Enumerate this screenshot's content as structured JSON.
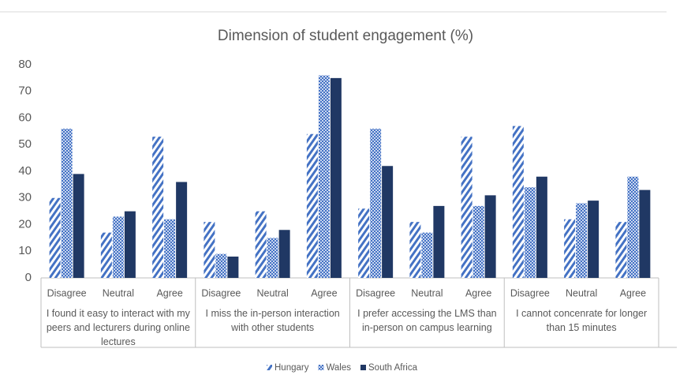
{
  "chart_data": {
    "type": "bar",
    "title": "Dimension of student engagement (%)",
    "categories": [
      "Disagree",
      "Neutral",
      "Agree",
      "Disagree",
      "Neutral",
      "Agree",
      "Disagree",
      "Neutral",
      "Agree",
      "Disagree",
      "Neutral",
      "Agree"
    ],
    "category_groups": [
      "I found it easy to interact with my peers and lecturers during online lectures",
      "I miss the in-person interaction with other students",
      "I prefer accessing the LMS than in-person on campus learning",
      "I cannot concenrate for longer than 15 minutes"
    ],
    "series": [
      {
        "name": "Hungary",
        "color": "#4472c4",
        "values": [
          30,
          17,
          53,
          21,
          25,
          54,
          26,
          21,
          53,
          57,
          22,
          21
        ]
      },
      {
        "name": "Wales",
        "color": "#4472c4",
        "values": [
          56,
          23,
          22,
          9,
          15,
          76,
          56,
          17,
          27,
          34,
          28,
          38
        ]
      },
      {
        "name": "South Africa",
        "color": "#203864",
        "values": [
          39,
          25,
          36,
          8,
          18,
          75,
          42,
          27,
          31,
          38,
          29,
          33
        ]
      }
    ],
    "ylim": [
      0,
      80
    ],
    "yticks": [
      0,
      10,
      20,
      30,
      40,
      50,
      60,
      70,
      80
    ],
    "grid": false,
    "legend": "bottom"
  }
}
